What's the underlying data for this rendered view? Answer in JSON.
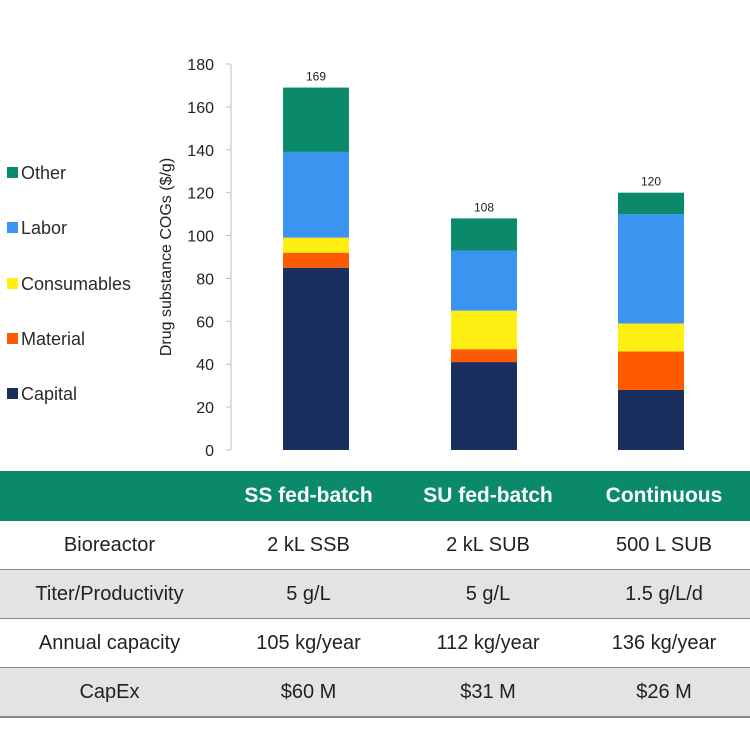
{
  "chart_data": {
    "type": "bar",
    "stacked": true,
    "categories": [
      "SS fed-batch",
      "SU fed-batch",
      "Continuous"
    ],
    "series": [
      {
        "name": "Capital",
        "color": "#1b2f5e",
        "values": [
          85,
          41,
          28
        ]
      },
      {
        "name": "Material",
        "color": "#ff5a00",
        "values": [
          7,
          6,
          18
        ]
      },
      {
        "name": "Consumables",
        "color": "#ffee11",
        "values": [
          7,
          18,
          13
        ]
      },
      {
        "name": "Labor",
        "color": "#3b95f0",
        "values": [
          40,
          28,
          51
        ]
      },
      {
        "name": "Other",
        "color": "#0a8a6b",
        "values": [
          30,
          15,
          10
        ]
      }
    ],
    "totals": [
      "169",
      "108",
      "120"
    ],
    "ylabel": "Drug substance COGs ($/g)",
    "ylim": [
      0,
      180
    ],
    "yticks": [
      "0",
      "20",
      "40",
      "60",
      "80",
      "100",
      "120",
      "140",
      "160",
      "180"
    ],
    "legend_position": "left",
    "grid": false
  },
  "table": {
    "header_color": "#0a8a6b",
    "headers": [
      "",
      "SS fed-batch",
      "SU fed-batch",
      "Continuous"
    ],
    "rows": [
      [
        "Bioreactor",
        "2 kL SSB",
        "2 kL SUB",
        "500 L SUB"
      ],
      [
        "Titer/Productivity",
        "5 g/L",
        "5 g/L",
        "1.5 g/L/d"
      ],
      [
        "Annual capacity",
        "105 kg/year",
        "112 kg/year",
        "136 kg/year"
      ],
      [
        "CapEx",
        "$60 M",
        "$31 M",
        "$26 M"
      ]
    ]
  }
}
